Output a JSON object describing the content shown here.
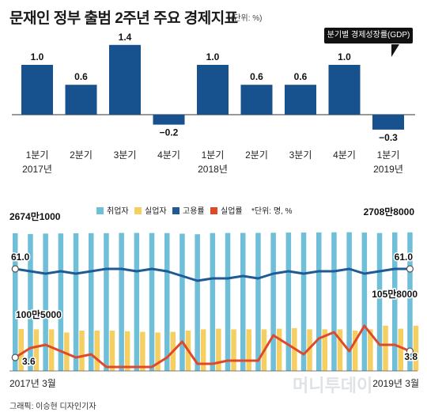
{
  "page": {
    "title": "문재인 정부 출범 2주년 주요 경제지표",
    "unit": "(단위: %)",
    "credit": "그래픽: 이승현 디자인기자",
    "watermark": "머니투데이"
  },
  "chart_data": [
    {
      "type": "bar",
      "annotation": "분기별 경제성장률(GDP)",
      "categories": [
        "1분기",
        "2분기",
        "3분기",
        "4분기",
        "1분기",
        "2분기",
        "3분기",
        "4분기",
        "1분기"
      ],
      "year_labels": [
        {
          "index": 0,
          "label": "2017년"
        },
        {
          "index": 4,
          "label": "2018년"
        },
        {
          "index": 8,
          "label": "2019년"
        }
      ],
      "values": [
        1.0,
        0.6,
        1.4,
        -0.2,
        1.0,
        0.6,
        0.6,
        1.0,
        -0.3
      ],
      "data_labels": [
        "1.0",
        "0.6",
        "1.4",
        "−0.2",
        "1.0",
        "0.6",
        "0.6",
        "1.0",
        "−0.3"
      ],
      "ylim": [
        -0.3,
        1.4
      ],
      "colors": {
        "bar": "#17528f",
        "axis": "#333333"
      }
    },
    {
      "type": "bar",
      "unit": "*단위: 명, %",
      "legend_placement": "top",
      "legend": [
        {
          "name": "취업자",
          "color": "#6fbfd9",
          "shape": "square"
        },
        {
          "name": "실업자",
          "color": "#f6cf62",
          "shape": "square"
        },
        {
          "name": "고용률",
          "color": "#1d5a96",
          "shape": "square"
        },
        {
          "name": "실업률",
          "color": "#e0482a",
          "shape": "square"
        }
      ],
      "x_start": "2017년 3월",
      "x_end": "2019년 3월",
      "series": [
        {
          "name": "취업자",
          "values": [
            26741000,
            26500000,
            26650000,
            26700000,
            26750000,
            26800000,
            26790000,
            26880000,
            26890000,
            26850000,
            26820000,
            26600000,
            26400000,
            26830000,
            26860000,
            26880000,
            26900000,
            26950000,
            27000000,
            27020000,
            27050000,
            27100000,
            27120000,
            27000000,
            26850000,
            27080000,
            27088000
          ]
        },
        {
          "name": "실업자",
          "values": [
            1005000,
            1000000,
            1000000,
            950000,
            980000,
            980000,
            980000,
            970000,
            960000,
            950000,
            960000,
            980000,
            1000000,
            1010000,
            1000000,
            1000000,
            1000000,
            1010000,
            1020000,
            1000000,
            1000000,
            1000000,
            980000,
            1000000,
            1058000,
            1010000,
            1058000
          ]
        },
        {
          "name": "고용률",
          "values": [
            61.0,
            60.9,
            60.8,
            60.9,
            60.8,
            60.9,
            61.0,
            61.0,
            60.9,
            61.0,
            60.9,
            60.7,
            60.5,
            60.6,
            60.6,
            60.7,
            60.6,
            60.8,
            60.9,
            60.8,
            60.9,
            60.9,
            61.0,
            60.8,
            60.9,
            61.0,
            61.0
          ]
        },
        {
          "name": "실업률",
          "values": [
            3.6,
            3.9,
            4.0,
            3.8,
            3.6,
            3.7,
            3.3,
            3.3,
            3.3,
            3.3,
            3.6,
            4.1,
            3.4,
            3.4,
            3.5,
            3.5,
            3.5,
            4.3,
            4.0,
            3.7,
            4.2,
            4.4,
            3.8,
            4.6,
            4.0,
            4.0,
            3.8
          ]
        }
      ],
      "data_labels": [
        {
          "series": "취업자",
          "index": 0,
          "label": "2674만1000"
        },
        {
          "series": "취업자",
          "index": 26,
          "label": "2708만8000"
        },
        {
          "series": "고용률",
          "index": 0,
          "label": "61.0"
        },
        {
          "series": "고용률",
          "index": 26,
          "label": "61.0"
        },
        {
          "series": "실업자",
          "index": 0,
          "label": "100만5000"
        },
        {
          "series": "실업자",
          "index": 26,
          "label": "105만8000"
        },
        {
          "series": "실업률",
          "index": 0,
          "label": "3.6"
        },
        {
          "series": "실업률",
          "index": 26,
          "label": "3.8"
        }
      ]
    }
  ]
}
